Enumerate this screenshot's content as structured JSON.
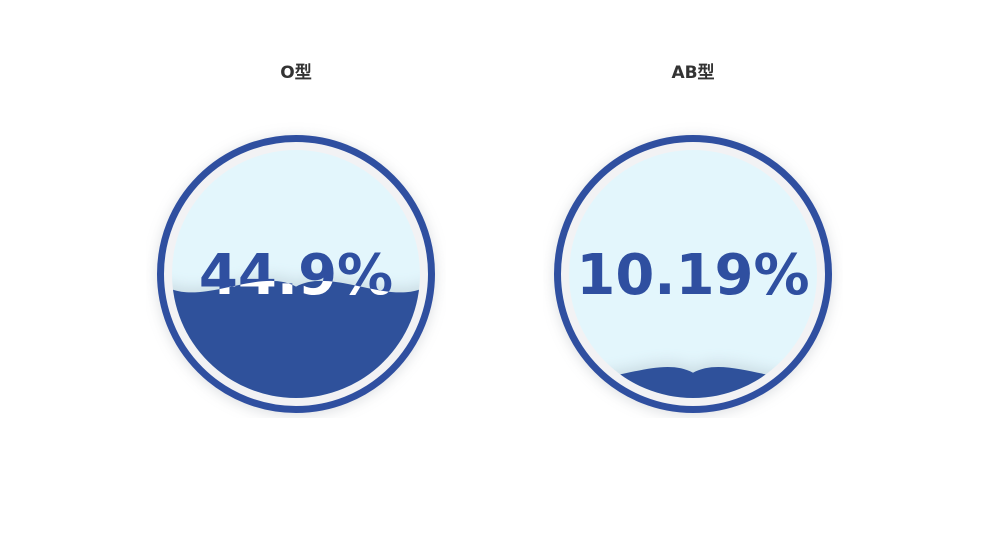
{
  "chart_data": {
    "type": "liquid-fill",
    "charts": [
      {
        "title": "O型",
        "value": 0.449,
        "label": "44.9%"
      },
      {
        "title": "AB型",
        "value": 0.1019,
        "label": "10.19%"
      }
    ],
    "colors": {
      "wave": "#2f519b",
      "border": "#2f4fa0",
      "background": "#e3f6fc",
      "text_dark": "#2f4fa0",
      "text_light": "#ffffff"
    }
  }
}
